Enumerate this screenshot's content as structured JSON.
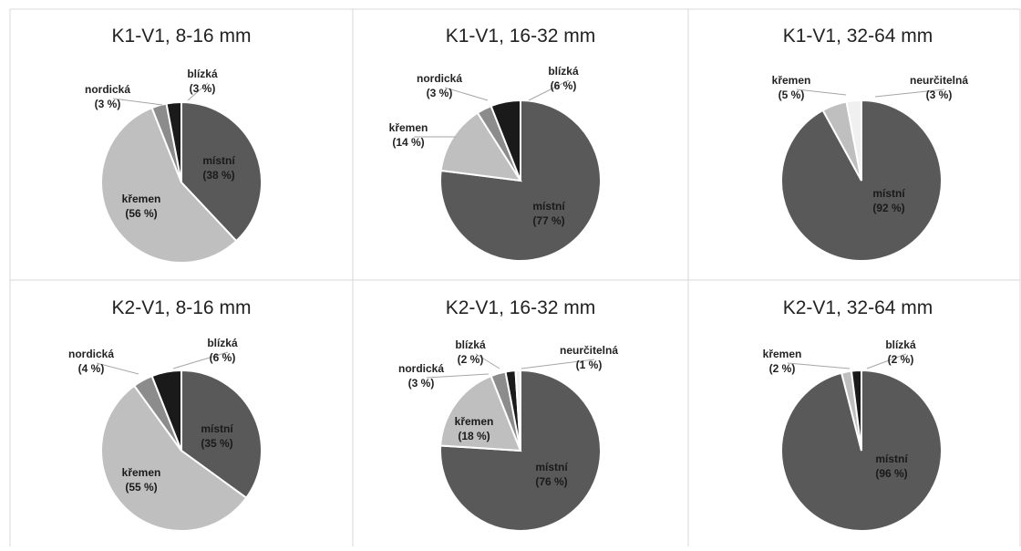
{
  "colors": {
    "místní": "#595959",
    "křemen": "#bfbfbf",
    "nordická": "#8c8c8c",
    "blízká": "#1a1a1a",
    "neurčitelná": "#f0f0f0",
    "grid": "#d9d9d9",
    "slice_border": "#ffffff"
  },
  "chart_data": [
    {
      "type": "pie",
      "title": "K1-V1, 8-16 mm",
      "slices": [
        {
          "category": "místní",
          "value": 38,
          "value_label": "(38 %)"
        },
        {
          "category": "křemen",
          "value": 56,
          "value_label": "(56 %)"
        },
        {
          "category": "nordická",
          "value": 3,
          "value_label": "(3 %)"
        },
        {
          "category": "blízká",
          "value": 3,
          "value_label": "(3 %)"
        }
      ]
    },
    {
      "type": "pie",
      "title": "K1-V1, 16-32 mm",
      "slices": [
        {
          "category": "místní",
          "value": 77,
          "value_label": "(77 %)"
        },
        {
          "category": "křemen",
          "value": 14,
          "value_label": "(14 %)"
        },
        {
          "category": "nordická",
          "value": 3,
          "value_label": "(3 %)"
        },
        {
          "category": "blízká",
          "value": 6,
          "value_label": "(6 %)"
        }
      ]
    },
    {
      "type": "pie",
      "title": "K1-V1, 32-64 mm",
      "slices": [
        {
          "category": "místní",
          "value": 92,
          "value_label": "(92 %)"
        },
        {
          "category": "křemen",
          "value": 5,
          "value_label": "(5 %)"
        },
        {
          "category": "neurčitelná",
          "value": 3,
          "value_label": "(3 %)"
        }
      ]
    },
    {
      "type": "pie",
      "title": "K2-V1, 8-16 mm",
      "slices": [
        {
          "category": "místní",
          "value": 35,
          "value_label": "(35 %)"
        },
        {
          "category": "křemen",
          "value": 55,
          "value_label": "(55 %)"
        },
        {
          "category": "nordická",
          "value": 4,
          "value_label": "(4 %)"
        },
        {
          "category": "blízká",
          "value": 6,
          "value_label": "(6 %)"
        }
      ]
    },
    {
      "type": "pie",
      "title": "K2-V1, 16-32 mm",
      "slices": [
        {
          "category": "místní",
          "value": 76,
          "value_label": "(76 %)"
        },
        {
          "category": "křemen",
          "value": 18,
          "value_label": "(18 %)"
        },
        {
          "category": "nordická",
          "value": 3,
          "value_label": "(3 %)"
        },
        {
          "category": "blízká",
          "value": 2,
          "value_label": "(2 %)"
        },
        {
          "category": "neurčitelná",
          "value": 1,
          "value_label": "(1 %)"
        }
      ]
    },
    {
      "type": "pie",
      "title": "K2-V1, 32-64 mm",
      "slices": [
        {
          "category": "místní",
          "value": 96,
          "value_label": "(96 %)"
        },
        {
          "category": "křemen",
          "value": 2,
          "value_label": "(2 %)"
        },
        {
          "category": "blízká",
          "value": 2,
          "value_label": "(2 %)"
        }
      ]
    }
  ]
}
